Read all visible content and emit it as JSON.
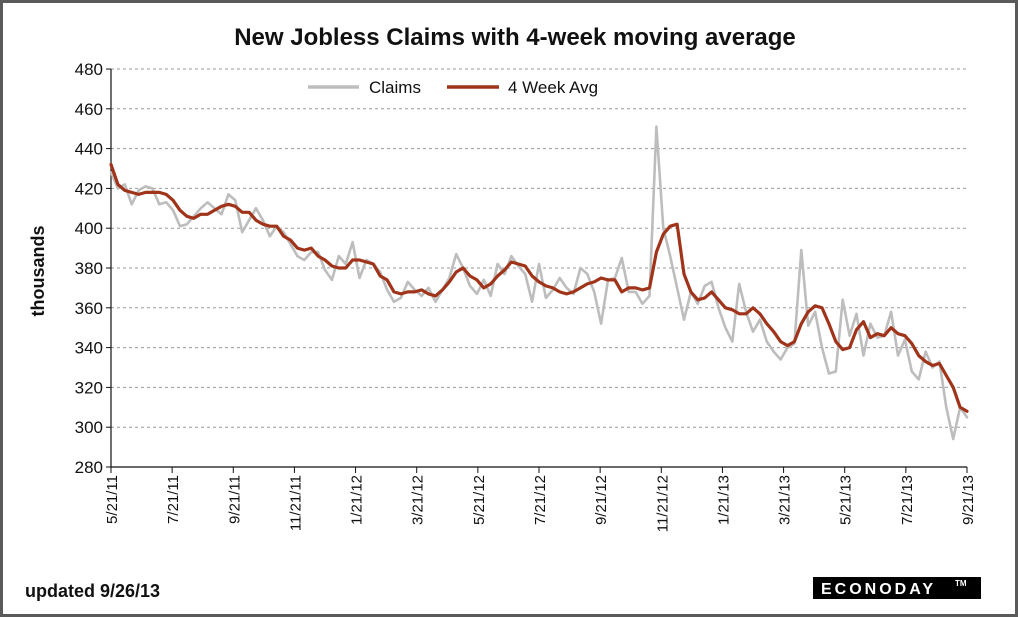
{
  "colors": {
    "claims": "#bdbdbd",
    "avg": "#a0341a",
    "grid": "#9a9a9a",
    "brand_bg": "#000000"
  },
  "footnote": "updated 9/26/13",
  "brand": {
    "text": "ECONODAY",
    "tm": "TM"
  },
  "chart_data": {
    "type": "line",
    "title": "New Jobless Claims with 4-week moving average",
    "ylabel": "thousands",
    "xlabel": "",
    "ylim": [
      280,
      480
    ],
    "yticks": [
      280,
      300,
      320,
      340,
      360,
      380,
      400,
      420,
      440,
      460,
      480
    ],
    "grid": "horizontal dashed",
    "legend": "top-center",
    "x_tick_labels": [
      "5/21/11",
      "7/21/11",
      "9/21/11",
      "11/21/11",
      "1/21/12",
      "3/21/12",
      "5/21/12",
      "7/21/12",
      "9/21/12",
      "11/21/12",
      "1/21/13",
      "3/21/13",
      "5/21/13",
      "7/21/13",
      "9/21/13"
    ],
    "series": [
      {
        "name": "Claims",
        "values": [
          428,
          420,
          422,
          412,
          419,
          421,
          420,
          412,
          413,
          409,
          401,
          402,
          406,
          410,
          413,
          410,
          407,
          417,
          414,
          398,
          404,
          410,
          404,
          396,
          401,
          398,
          392,
          386,
          384,
          388,
          388,
          379,
          374,
          386,
          382,
          393,
          375,
          384,
          382,
          378,
          369,
          363,
          365,
          373,
          369,
          366,
          370,
          363,
          369,
          375,
          387,
          380,
          371,
          367,
          374,
          366,
          382,
          377,
          386,
          381,
          377,
          363,
          382,
          365,
          369,
          375,
          370,
          367,
          380,
          377,
          368,
          352,
          374,
          375,
          385,
          368,
          368,
          362,
          366,
          451,
          400,
          386,
          370,
          354,
          368,
          362,
          371,
          373,
          360,
          350,
          343,
          372,
          358,
          348,
          354,
          343,
          338,
          334,
          340,
          342,
          389,
          351,
          358,
          340,
          327,
          328,
          364,
          346,
          357,
          336,
          352,
          345,
          346,
          358,
          336,
          344,
          328,
          324,
          338,
          330,
          333,
          310,
          294,
          310,
          305
        ],
        "color_key": "claims"
      },
      {
        "name": "4 Week Avg",
        "values": [
          432,
          422,
          419,
          418,
          417,
          418,
          418,
          418,
          417,
          414,
          409,
          406,
          405,
          407,
          407,
          409,
          411,
          412,
          411,
          408,
          408,
          404,
          402,
          401,
          401,
          396,
          394,
          390,
          389,
          390,
          386,
          384,
          381,
          380,
          380,
          384,
          384,
          383,
          382,
          376,
          374,
          368,
          367,
          368,
          368,
          369,
          367,
          366,
          369,
          373,
          378,
          380,
          376,
          374,
          370,
          372,
          376,
          379,
          383,
          382,
          381,
          376,
          373,
          371,
          370,
          368,
          367,
          368,
          370,
          372,
          373,
          375,
          374,
          374,
          368,
          370,
          370,
          369,
          370,
          388,
          397,
          401,
          402,
          377,
          368,
          364,
          365,
          368,
          364,
          360,
          359,
          357,
          357,
          360,
          357,
          352,
          348,
          343,
          341,
          343,
          352,
          358,
          361,
          360,
          352,
          343,
          339,
          340,
          349,
          353,
          345,
          347,
          346,
          350,
          347,
          346,
          342,
          336,
          333,
          331,
          332,
          326,
          320,
          310,
          308
        ],
        "color_key": "avg"
      }
    ]
  }
}
